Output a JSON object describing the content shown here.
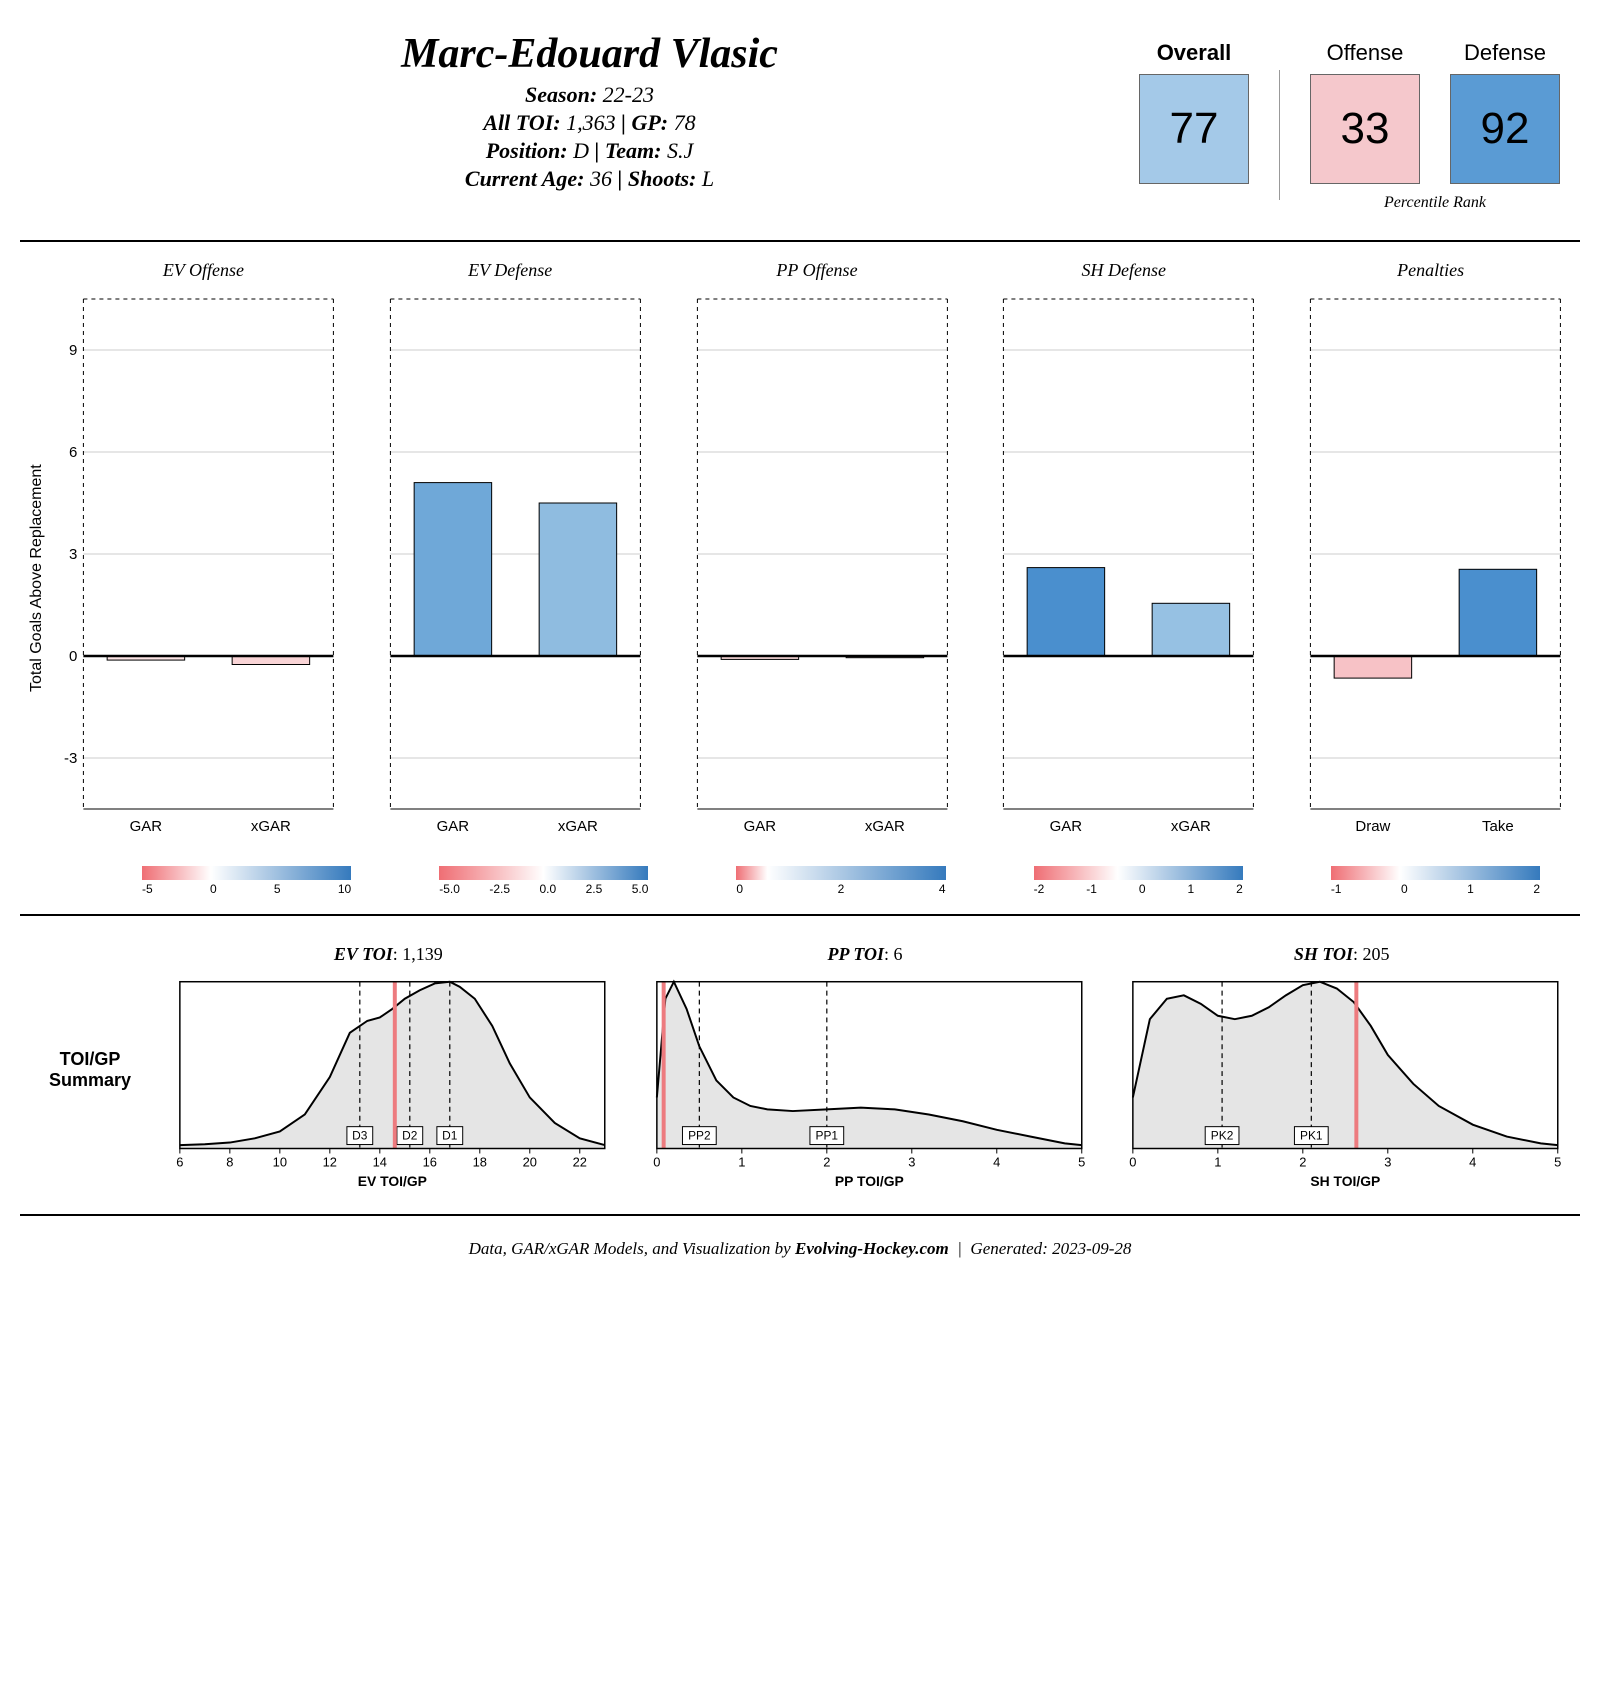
{
  "player": {
    "name": "Marc-Edouard Vlasic",
    "season_label": "Season",
    "season": "22-23",
    "toi_label": "All TOI",
    "toi": "1,363",
    "gp_label": "GP",
    "gp": "78",
    "position_label": "Position",
    "position": "D",
    "team_label": "Team",
    "team": "S.J",
    "age_label": "Current Age",
    "age": "36",
    "shoots_label": "Shoots",
    "shoots": "L"
  },
  "ranks": {
    "overall": {
      "label": "Overall",
      "value": "77",
      "bg": "#a4c9e8",
      "bold": true
    },
    "offense": {
      "label": "Offense",
      "value": "33",
      "bg": "#f5c8cc",
      "bold": false
    },
    "defense": {
      "label": "Defense",
      "value": "92",
      "bg": "#5a9bd4",
      "bold": false
    },
    "sublabel": "Percentile Rank"
  },
  "bar_chart": {
    "y_label": "Total Goals Above Replacement",
    "ylim": [
      -4.5,
      10.5
    ],
    "yticks": [
      -3,
      0,
      3,
      6,
      9
    ],
    "grid_color": "#cccccc",
    "panels": [
      {
        "title": "EV Offense",
        "cats": [
          "GAR",
          "xGAR"
        ],
        "bars": [
          {
            "value": -0.12,
            "fill": "#fde5e6"
          },
          {
            "value": -0.25,
            "fill": "#f9d4d6"
          }
        ],
        "gradient": {
          "stops": [
            "#ef6e74",
            "#ffffff",
            "#357abd"
          ],
          "mid": 0.33,
          "ticks": [
            "-5",
            "0",
            "5",
            "10"
          ]
        }
      },
      {
        "title": "EV Defense",
        "cats": [
          "GAR",
          "xGAR"
        ],
        "bars": [
          {
            "value": 5.1,
            "fill": "#6fa8d8"
          },
          {
            "value": 4.5,
            "fill": "#8fbce0"
          }
        ],
        "gradient": {
          "stops": [
            "#ef6e74",
            "#ffffff",
            "#357abd"
          ],
          "mid": 0.5,
          "ticks": [
            "-5.0",
            "-2.5",
            "0.0",
            "2.5",
            "5.0"
          ]
        }
      },
      {
        "title": "PP Offense",
        "cats": [
          "GAR",
          "xGAR"
        ],
        "bars": [
          {
            "value": -0.1,
            "fill": "#fbdadb"
          },
          {
            "value": -0.05,
            "fill": "#fef2f2"
          }
        ],
        "gradient": {
          "stops": [
            "#ef6e74",
            "#ffffff",
            "#357abd"
          ],
          "mid": 0.15,
          "ticks": [
            "0",
            "2",
            "4"
          ]
        }
      },
      {
        "title": "SH Defense",
        "cats": [
          "GAR",
          "xGAR"
        ],
        "bars": [
          {
            "value": 2.6,
            "fill": "#4a8fce"
          },
          {
            "value": 1.55,
            "fill": "#96c1e3"
          }
        ],
        "gradient": {
          "stops": [
            "#ef6e74",
            "#ffffff",
            "#357abd"
          ],
          "mid": 0.4,
          "ticks": [
            "-2",
            "-1",
            "0",
            "1",
            "2"
          ]
        }
      },
      {
        "title": "Penalties",
        "cats": [
          "Draw",
          "Take"
        ],
        "bars": [
          {
            "value": -0.65,
            "fill": "#f7c2c6"
          },
          {
            "value": 2.55,
            "fill": "#4a8fce"
          }
        ],
        "gradient": {
          "stops": [
            "#ef6e74",
            "#ffffff",
            "#357abd"
          ],
          "mid": 0.33,
          "ticks": [
            "-1",
            "0",
            "1",
            "2"
          ]
        }
      }
    ]
  },
  "toi": {
    "section_label": "TOI/GP Summary",
    "panels": [
      {
        "title_label": "EV TOI",
        "title_value": "1,139",
        "xlabel": "EV TOI/GP",
        "xlim": [
          6,
          23
        ],
        "xticks": [
          6,
          8,
          10,
          12,
          14,
          16,
          18,
          20,
          22
        ],
        "marker": 14.6,
        "marker_color": "#ed7b7f",
        "refs": [
          {
            "x": 13.2,
            "label": "D3"
          },
          {
            "x": 15.2,
            "label": "D2"
          },
          {
            "x": 16.8,
            "label": "D1"
          }
        ],
        "density": [
          [
            6,
            0.02
          ],
          [
            7,
            0.025
          ],
          [
            8,
            0.035
          ],
          [
            9,
            0.06
          ],
          [
            10,
            0.1
          ],
          [
            11,
            0.2
          ],
          [
            12,
            0.42
          ],
          [
            12.8,
            0.68
          ],
          [
            13.5,
            0.75
          ],
          [
            14,
            0.77
          ],
          [
            14.5,
            0.82
          ],
          [
            15,
            0.88
          ],
          [
            15.6,
            0.93
          ],
          [
            16.2,
            0.97
          ],
          [
            16.8,
            0.98
          ],
          [
            17.2,
            0.95
          ],
          [
            17.8,
            0.88
          ],
          [
            18.5,
            0.72
          ],
          [
            19.2,
            0.5
          ],
          [
            20,
            0.3
          ],
          [
            21,
            0.15
          ],
          [
            22,
            0.06
          ],
          [
            23,
            0.02
          ]
        ]
      },
      {
        "title_label": "PP TOI",
        "title_value": "6",
        "xlabel": "PP TOI/GP",
        "xlim": [
          0,
          5
        ],
        "xticks": [
          0,
          1,
          2,
          3,
          4,
          5
        ],
        "marker": 0.08,
        "marker_color": "#ed7b7f",
        "refs": [
          {
            "x": 0.5,
            "label": "PP2"
          },
          {
            "x": 2.0,
            "label": "PP1"
          }
        ],
        "density": [
          [
            0,
            0.3
          ],
          [
            0.1,
            0.88
          ],
          [
            0.2,
            0.98
          ],
          [
            0.35,
            0.82
          ],
          [
            0.5,
            0.6
          ],
          [
            0.7,
            0.4
          ],
          [
            0.9,
            0.3
          ],
          [
            1.1,
            0.25
          ],
          [
            1.3,
            0.23
          ],
          [
            1.6,
            0.22
          ],
          [
            2,
            0.23
          ],
          [
            2.4,
            0.24
          ],
          [
            2.8,
            0.23
          ],
          [
            3.2,
            0.2
          ],
          [
            3.6,
            0.16
          ],
          [
            4,
            0.11
          ],
          [
            4.4,
            0.07
          ],
          [
            4.8,
            0.03
          ],
          [
            5,
            0.02
          ]
        ]
      },
      {
        "title_label": "SH TOI",
        "title_value": "205",
        "xlabel": "SH TOI/GP",
        "xlim": [
          0,
          5
        ],
        "xticks": [
          0,
          1,
          2,
          3,
          4,
          5
        ],
        "marker": 2.63,
        "marker_color": "#ed7b7f",
        "refs": [
          {
            "x": 1.05,
            "label": "PK2"
          },
          {
            "x": 2.1,
            "label": "PK1"
          }
        ],
        "density": [
          [
            0,
            0.3
          ],
          [
            0.2,
            0.76
          ],
          [
            0.4,
            0.88
          ],
          [
            0.6,
            0.9
          ],
          [
            0.8,
            0.85
          ],
          [
            1,
            0.78
          ],
          [
            1.2,
            0.76
          ],
          [
            1.4,
            0.78
          ],
          [
            1.6,
            0.83
          ],
          [
            1.8,
            0.9
          ],
          [
            2,
            0.96
          ],
          [
            2.2,
            0.98
          ],
          [
            2.4,
            0.94
          ],
          [
            2.6,
            0.86
          ],
          [
            2.8,
            0.72
          ],
          [
            3,
            0.55
          ],
          [
            3.3,
            0.38
          ],
          [
            3.6,
            0.25
          ],
          [
            4,
            0.14
          ],
          [
            4.4,
            0.07
          ],
          [
            4.8,
            0.03
          ],
          [
            5,
            0.02
          ]
        ]
      }
    ]
  },
  "footer": {
    "prefix": "Data, GAR/xGAR Models, and Visualization by ",
    "site": "Evolving-Hockey.com",
    "gen_label": "Generated",
    "gen_date": "2023-09-28"
  }
}
